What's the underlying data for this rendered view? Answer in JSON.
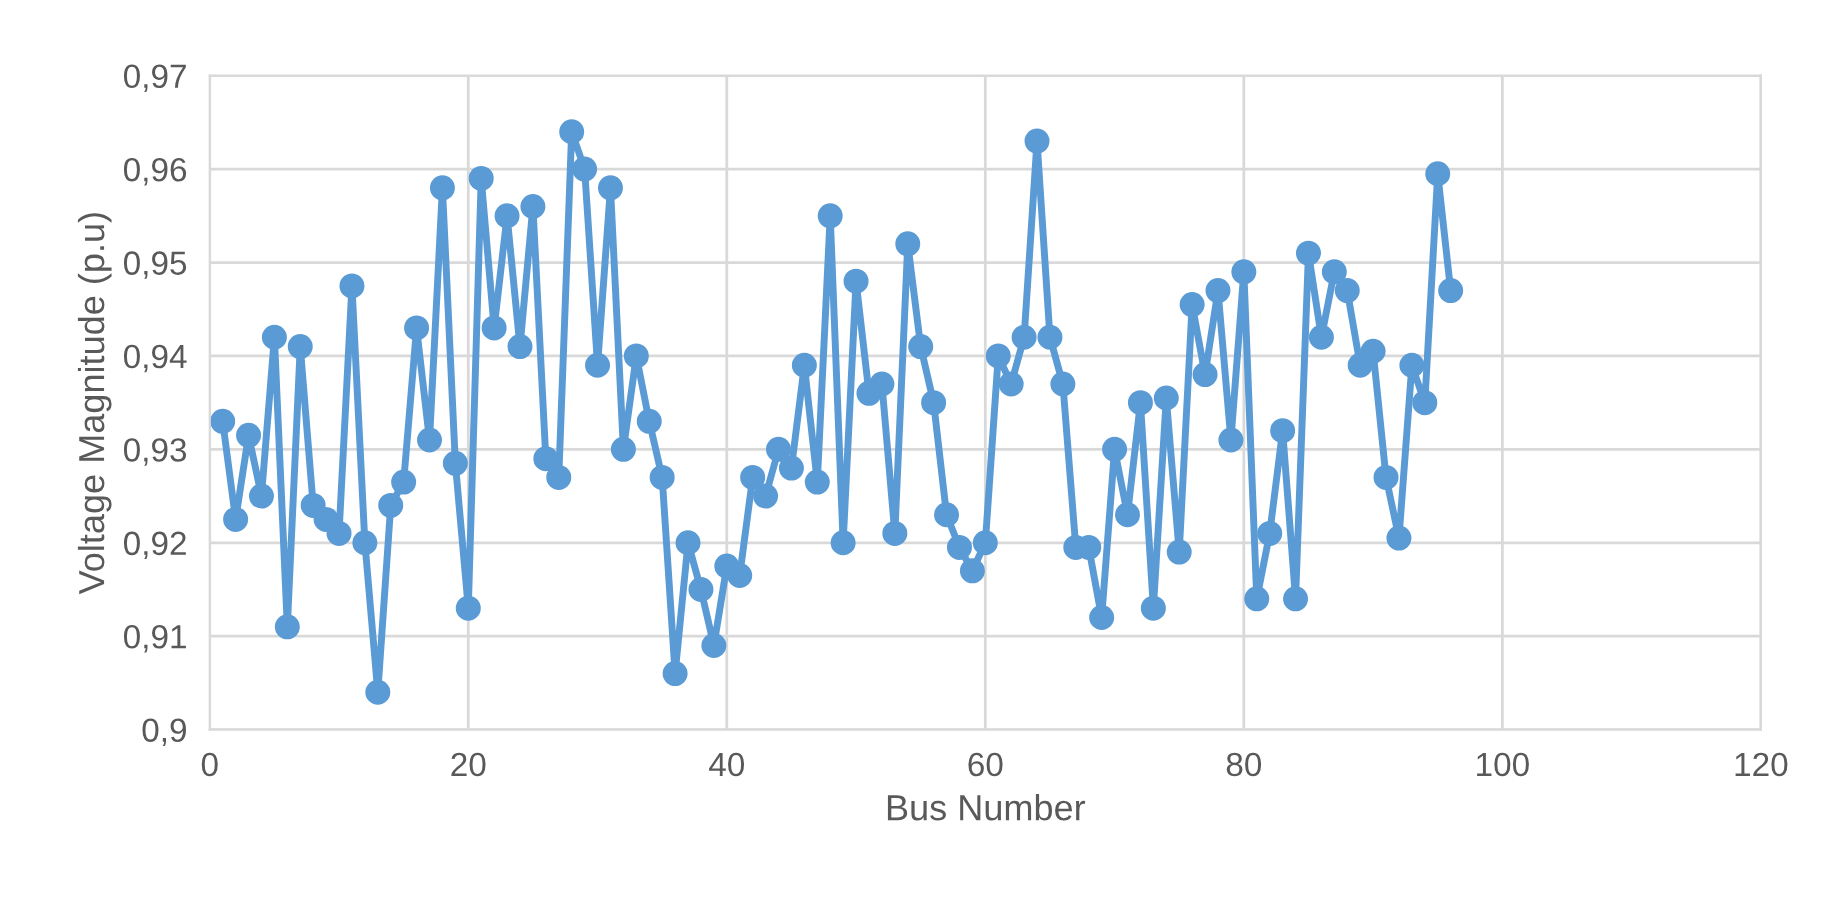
{
  "chart_data": {
    "type": "line",
    "xlabel": "Bus Number",
    "ylabel": "Voltage Magnitude (p.u)",
    "x": [
      1,
      2,
      3,
      4,
      5,
      6,
      7,
      8,
      9,
      10,
      11,
      12,
      13,
      14,
      15,
      16,
      17,
      18,
      19,
      20,
      21,
      22,
      23,
      24,
      25,
      26,
      27,
      28,
      29,
      30,
      31,
      32,
      33,
      34,
      35,
      36,
      37,
      38,
      39,
      40,
      41,
      42,
      43,
      44,
      45,
      46,
      47,
      48,
      49,
      50,
      51,
      52,
      53,
      54,
      55,
      56,
      57,
      58,
      59,
      60,
      61,
      62,
      63,
      64,
      65,
      66,
      67,
      68,
      69,
      70,
      71,
      72,
      73,
      74,
      75,
      76,
      77,
      78,
      79,
      80,
      81,
      82,
      83,
      84,
      85,
      86,
      87,
      88,
      89,
      90,
      91,
      92,
      93,
      94,
      95,
      96
    ],
    "series": [
      {
        "color": "#5b9bd5",
        "values": [
          0.933,
          0.9225,
          0.9315,
          0.925,
          0.942,
          0.911,
          0.941,
          0.924,
          0.9225,
          0.921,
          0.9475,
          0.92,
          0.904,
          0.924,
          0.9265,
          0.943,
          0.931,
          0.958,
          0.9285,
          0.913,
          0.959,
          0.943,
          0.955,
          0.941,
          0.956,
          0.929,
          0.927,
          0.964,
          0.96,
          0.939,
          0.958,
          0.93,
          0.94,
          0.933,
          0.927,
          0.906,
          0.92,
          0.915,
          0.909,
          0.9175,
          0.9165,
          0.927,
          0.925,
          0.93,
          0.928,
          0.939,
          0.9265,
          0.955,
          0.92,
          0.948,
          0.936,
          0.937,
          0.921,
          0.952,
          0.941,
          0.935,
          0.923,
          0.9195,
          0.917,
          0.92,
          0.94,
          0.937,
          0.942,
          0.963,
          0.942,
          0.937,
          0.9195,
          0.9195,
          0.912,
          0.93,
          0.923,
          0.935,
          0.913,
          0.9355,
          0.919,
          0.9455,
          0.938,
          0.947,
          0.931,
          0.949,
          0.914,
          0.921,
          0.932,
          0.914,
          0.951,
          0.942,
          0.949,
          0.947,
          0.939,
          0.9405,
          0.927,
          0.9205,
          0.939,
          0.935,
          0.9595,
          0.947
        ]
      }
    ],
    "xlim": [
      0,
      120
    ],
    "xticks": [
      0,
      20,
      40,
      60,
      80,
      100,
      120
    ],
    "ylim": [
      0.9,
      0.97
    ],
    "yticks": [
      {
        "value": 0.9,
        "label": "0,9"
      },
      {
        "value": 0.91,
        "label": "0,91"
      },
      {
        "value": 0.92,
        "label": "0,92"
      },
      {
        "value": 0.93,
        "label": "0,93"
      },
      {
        "value": 0.94,
        "label": "0,94"
      },
      {
        "value": 0.95,
        "label": "0,95"
      },
      {
        "value": 0.96,
        "label": "0,96"
      },
      {
        "value": 0.97,
        "label": "0,97"
      }
    ],
    "grid": true,
    "marker": "circle",
    "line_style": "solid",
    "legend": false
  }
}
